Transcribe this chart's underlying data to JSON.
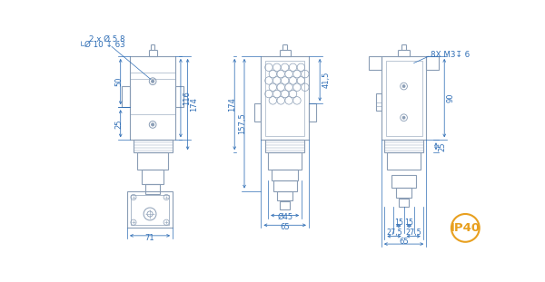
{
  "bg_color": "#ffffff",
  "line_color": "#8a9db5",
  "dim_color": "#2e6db5",
  "ip40_color": "#e8a020",
  "figsize": [
    6.0,
    3.11
  ],
  "dpi": 100,
  "ip40_text": "IP40",
  "annotations": {
    "v1_note1": "2 x Ø 5.8",
    "v1_note2": "Ø 10 ↧ 63",
    "v1_dim50": "50",
    "v1_dim25": "25",
    "v1_dim116": "116",
    "v1_dim174": "174",
    "v2_dim157": "157,5",
    "v2_dim41": "41,5",
    "v2_dimD45": "Ø45",
    "v2_dim65": "65",
    "v3_note": "8X M3↧ 6",
    "v3_dim90": "90",
    "v3_dim25": "25",
    "v3_dim15a": "15",
    "v3_dim15b": "15",
    "v3_dim27a": "27,5",
    "v3_dim27b": "27,5",
    "v3_dim65": "65",
    "v4_dim71": "71"
  }
}
